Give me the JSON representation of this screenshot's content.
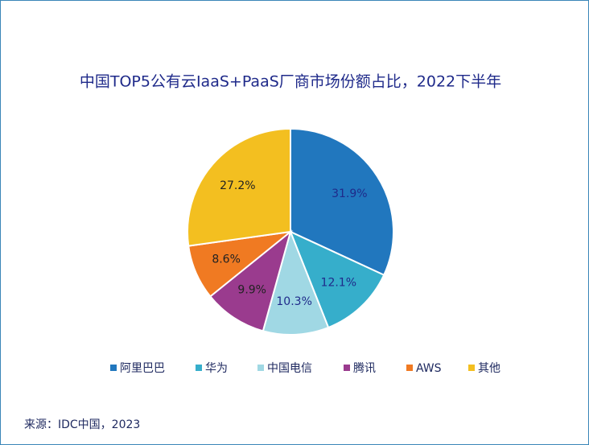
{
  "chart_data": {
    "type": "pie",
    "title": "中国TOP5公有云IaaS+PaaS厂商市场份额占比，2022下半年",
    "categories": [
      "阿里巴巴",
      "华为",
      "中国电信",
      "腾讯",
      "AWS",
      "其他"
    ],
    "values": [
      31.9,
      12.1,
      10.3,
      9.9,
      8.6,
      27.2
    ],
    "value_labels": [
      "31.9%",
      "12.1%",
      "10.3%",
      "9.9%",
      "8.6%",
      "27.2%"
    ],
    "colors": [
      "#2177be",
      "#36aecb",
      "#a0d8e4",
      "#9a3b8e",
      "#f07a22",
      "#f3bf20"
    ],
    "source": "来源：IDC中国，2023"
  }
}
